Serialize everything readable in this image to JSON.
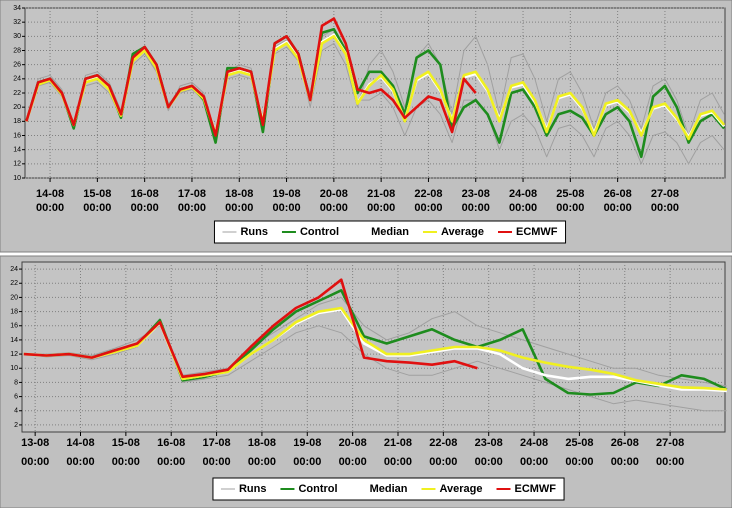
{
  "chart_data": [
    {
      "type": "line",
      "x": [
        13.5,
        13.75,
        14,
        14.25,
        14.5,
        14.75,
        15,
        15.25,
        15.5,
        15.75,
        16,
        16.25,
        16.5,
        16.75,
        17,
        17.25,
        17.5,
        17.75,
        18,
        18.25,
        18.5,
        18.75,
        19,
        19.25,
        19.5,
        19.75,
        20,
        20.25,
        20.5,
        20.75,
        21,
        21.25,
        21.5,
        21.75,
        22,
        22.25,
        22.5,
        22.75,
        23,
        23.25,
        23.5,
        23.75,
        24,
        24.25,
        24.5,
        24.75,
        25,
        25.25,
        25.5,
        25.75,
        26,
        26.25,
        26.5,
        26.75,
        27,
        27.25,
        27.5,
        27.75,
        28,
        28.25
      ],
      "xlim": [
        13.47,
        28.27
      ],
      "ylim": [
        10,
        34
      ],
      "yticks": [
        10,
        12,
        14,
        16,
        18,
        20,
        22,
        24,
        26,
        28,
        30,
        32,
        34
      ],
      "xticks": [
        {
          "value": 14,
          "label": "14-08",
          "time": "00:00"
        },
        {
          "value": 15,
          "label": "15-08",
          "time": "00:00"
        },
        {
          "value": 16,
          "label": "16-08",
          "time": "00:00"
        },
        {
          "value": 17,
          "label": "17-08",
          "time": "00:00"
        },
        {
          "value": 18,
          "label": "18-08",
          "time": "00:00"
        },
        {
          "value": 19,
          "label": "19-08",
          "time": "00:00"
        },
        {
          "value": 20,
          "label": "20-08",
          "time": "00:00"
        },
        {
          "value": 21,
          "label": "21-08",
          "time": "00:00"
        },
        {
          "value": 22,
          "label": "22-08",
          "time": "00:00"
        },
        {
          "value": 23,
          "label": "23-08",
          "time": "00:00"
        },
        {
          "value": 24,
          "label": "24-08",
          "time": "00:00"
        },
        {
          "value": 25,
          "label": "25-08",
          "time": "00:00"
        },
        {
          "value": 26,
          "label": "26-08",
          "time": "00:00"
        },
        {
          "value": 27,
          "label": "27-08",
          "time": "00:00"
        }
      ],
      "grid": true,
      "series": [
        {
          "name": "Runs",
          "color": "#a0a0a0",
          "runs": [
            [
              18,
              24,
              24.5,
              22.5,
              17,
              24.5,
              25,
              23.5,
              19.5,
              27,
              28,
              25,
              19.5,
              23,
              23.5,
              22,
              16.5,
              25,
              26,
              25.5,
              18,
              28.5,
              29.5,
              27,
              20,
              28,
              29,
              26,
              20,
              26,
              28,
              25,
              20,
              27,
              29,
              26,
              19,
              28,
              30,
              26,
              19,
              27,
              27.5,
              24,
              18,
              24,
              25,
              22,
              17,
              22,
              23,
              21,
              17,
              23,
              24,
              21,
              16,
              21,
              22,
              19
            ],
            [
              18,
              23,
              23.5,
              21.5,
              18,
              23,
              23.5,
              22,
              18.5,
              26,
              27.5,
              25,
              20.5,
              22,
              22.5,
              21,
              15.5,
              24,
              24.5,
              24,
              17,
              27.5,
              28.5,
              26.5,
              22,
              30,
              31,
              28,
              21,
              21,
              22,
              20,
              16,
              20,
              21,
              19,
              15,
              21,
              21,
              19,
              14,
              18,
              19,
              17,
              13,
              17,
              17.5,
              16,
              13,
              17,
              18,
              16,
              12,
              16,
              16.5,
              15,
              12,
              15,
              16,
              14
            ]
          ]
        },
        {
          "name": "Control",
          "color": "#1e8c1e",
          "values": [
            18,
            23.5,
            24,
            22,
            17,
            24,
            24.5,
            23,
            18.5,
            27.5,
            28.5,
            26,
            20,
            22.5,
            23,
            21,
            15,
            25.5,
            25.5,
            25,
            16.5,
            29,
            30,
            27.5,
            21,
            30.5,
            31,
            28,
            22,
            25,
            25,
            23,
            19,
            27,
            28,
            26,
            17,
            20,
            21,
            19,
            15,
            22,
            22.5,
            20,
            16,
            19,
            19.5,
            18.5,
            16,
            19,
            20,
            18,
            13,
            21.5,
            23,
            20,
            15,
            18,
            19,
            17
          ]
        },
        {
          "name": "Median",
          "color": "#ffffff",
          "values": [
            18,
            23.3,
            23.9,
            21.9,
            17.5,
            23.6,
            24.1,
            22.6,
            18.9,
            26.7,
            28.1,
            25.6,
            20,
            22.4,
            22.9,
            21.3,
            16.3,
            24.6,
            25.1,
            24.6,
            17.9,
            28.2,
            29.2,
            26.9,
            21,
            29.2,
            30.2,
            27.6,
            20.6,
            23.2,
            24.3,
            22.3,
            18.2,
            23.8,
            24.8,
            22.3,
            18.2,
            24.2,
            24.7,
            22.3,
            18.3,
            22.8,
            23.2,
            20.8,
            16.8,
            21.3,
            21.8,
            19.8,
            16.3,
            20.3,
            20.8,
            19.3,
            16.3,
            19.8,
            20.3,
            18.3,
            15.8,
            18.8,
            19.3,
            17.3
          ]
        },
        {
          "name": "Average",
          "color": "#f0f020",
          "values": [
            18,
            23.2,
            23.8,
            21.8,
            17.5,
            23.5,
            24,
            22.5,
            18.8,
            26.5,
            28,
            25.5,
            20,
            22.3,
            22.8,
            21.2,
            16.2,
            24.5,
            25,
            24.5,
            17.8,
            28,
            29,
            26.8,
            21,
            29,
            30,
            27.5,
            20.5,
            23,
            24.5,
            22.5,
            18,
            24,
            25,
            22.5,
            18,
            24.5,
            25,
            22.5,
            18,
            23,
            23.5,
            21,
            16.5,
            21.5,
            22,
            20,
            16,
            20.5,
            21,
            19.5,
            16,
            20,
            20.5,
            18.5,
            15.5,
            19,
            19.5,
            17.5
          ]
        },
        {
          "name": "ECMWF",
          "color": "#e01010",
          "values": [
            18,
            23.5,
            24,
            22,
            17.5,
            24,
            24.5,
            23,
            19,
            27,
            28.5,
            26,
            20,
            22.5,
            23,
            21.5,
            16,
            25,
            25.5,
            25,
            17.5,
            29,
            30,
            27.5,
            21,
            31.5,
            32.5,
            29,
            22.5,
            22,
            22.5,
            21,
            18.5,
            20,
            21.5,
            21,
            16.5,
            24,
            22,
            null,
            null,
            null,
            null,
            null,
            null,
            null,
            null,
            null,
            null,
            null,
            null,
            null,
            null,
            null,
            null,
            null,
            null,
            null,
            null,
            null
          ]
        }
      ]
    },
    {
      "type": "line",
      "x": [
        12.75,
        13.25,
        13.75,
        14.25,
        14.75,
        15.25,
        15.75,
        16.25,
        16.75,
        17.25,
        17.75,
        18.25,
        18.75,
        19.25,
        19.75,
        20.25,
        20.75,
        21.25,
        21.75,
        22.25,
        22.75,
        23.25,
        23.75,
        24.25,
        24.75,
        25.25,
        25.75,
        26.25,
        26.75,
        27.25,
        27.75,
        28.25
      ],
      "xlim": [
        12.71,
        28.21
      ],
      "ylim": [
        1,
        25
      ],
      "yticks": [
        2,
        4,
        6,
        8,
        10,
        12,
        14,
        16,
        18,
        20,
        22,
        24
      ],
      "xticks": [
        {
          "value": 13,
          "label": "13-08",
          "time": "00:00"
        },
        {
          "value": 14,
          "label": "14-08",
          "time": "00:00"
        },
        {
          "value": 15,
          "label": "15-08",
          "time": "00:00"
        },
        {
          "value": 16,
          "label": "16-08",
          "time": "00:00"
        },
        {
          "value": 17,
          "label": "17-08",
          "time": "00:00"
        },
        {
          "value": 18,
          "label": "18-08",
          "time": "00:00"
        },
        {
          "value": 19,
          "label": "19-08",
          "time": "00:00"
        },
        {
          "value": 20,
          "label": "20-08",
          "time": "00:00"
        },
        {
          "value": 21,
          "label": "21-08",
          "time": "00:00"
        },
        {
          "value": 22,
          "label": "22-08",
          "time": "00:00"
        },
        {
          "value": 23,
          "label": "23-08",
          "time": "00:00"
        },
        {
          "value": 24,
          "label": "24-08",
          "time": "00:00"
        },
        {
          "value": 25,
          "label": "25-08",
          "time": "00:00"
        },
        {
          "value": 26,
          "label": "26-08",
          "time": "00:00"
        },
        {
          "value": 27,
          "label": "27-08",
          "time": "00:00"
        }
      ],
      "grid": true,
      "series": [
        {
          "name": "Runs",
          "color": "#a0a0a0",
          "runs": [
            [
              12,
              12,
              12.2,
              11.8,
              12.8,
              14,
              16,
              9,
              9.5,
              10,
              13,
              15,
              17,
              19,
              20,
              16,
              14,
              15,
              17,
              18,
              16,
              15,
              14,
              13,
              12,
              11,
              10,
              10,
              9,
              8.5,
              8,
              7.5
            ],
            [
              12,
              11.6,
              11.8,
              11.2,
              12,
              13,
              17,
              8,
              8.5,
              9,
              11,
              13,
              15,
              16,
              15,
              12,
              10,
              9,
              9,
              10,
              11,
              10,
              9,
              8,
              7,
              6,
              5,
              5.5,
              5,
              4.5,
              4,
              4
            ]
          ]
        },
        {
          "name": "Control",
          "color": "#1e8c1e",
          "values": [
            12,
            11.8,
            12,
            11.5,
            12.5,
            13.3,
            16.8,
            8.3,
            8.8,
            9.6,
            12.5,
            15.5,
            18,
            19.5,
            21,
            14.5,
            13.5,
            14.5,
            15.5,
            14,
            13,
            14,
            15.5,
            8.5,
            6.5,
            6.3,
            6.5,
            8,
            7.5,
            9,
            8.5,
            7
          ]
        },
        {
          "name": "Median",
          "color": "#ffffff",
          "values": [
            12,
            11.8,
            12,
            11.5,
            12.3,
            13.2,
            16.4,
            8.5,
            9,
            9.5,
            12,
            14,
            16.3,
            17.8,
            18.3,
            13.5,
            11.8,
            11.8,
            12.3,
            12.8,
            12.8,
            12,
            10,
            9,
            8.5,
            8.8,
            8.8,
            8.2,
            7.6,
            7,
            7,
            6.8
          ]
        },
        {
          "name": "Average",
          "color": "#f0f020",
          "values": [
            12,
            11.8,
            12,
            11.5,
            12.3,
            13.2,
            16.5,
            8.5,
            9,
            9.5,
            12,
            14,
            16.5,
            18,
            18.5,
            14,
            12,
            12,
            12.5,
            13,
            13,
            12.5,
            11.5,
            10.8,
            10.2,
            9.8,
            9.2,
            8.3,
            7.8,
            7.3,
            7.2,
            7
          ]
        },
        {
          "name": "ECMWF",
          "color": "#e01010",
          "values": [
            12,
            11.8,
            12,
            11.5,
            12.5,
            13.5,
            16.5,
            8.8,
            9.2,
            9.8,
            13,
            16,
            18.5,
            20,
            22.5,
            11.5,
            11,
            10.8,
            10.5,
            11,
            10,
            null,
            null,
            null,
            null,
            null,
            null,
            null,
            null,
            null,
            null,
            null
          ]
        }
      ]
    }
  ]
}
